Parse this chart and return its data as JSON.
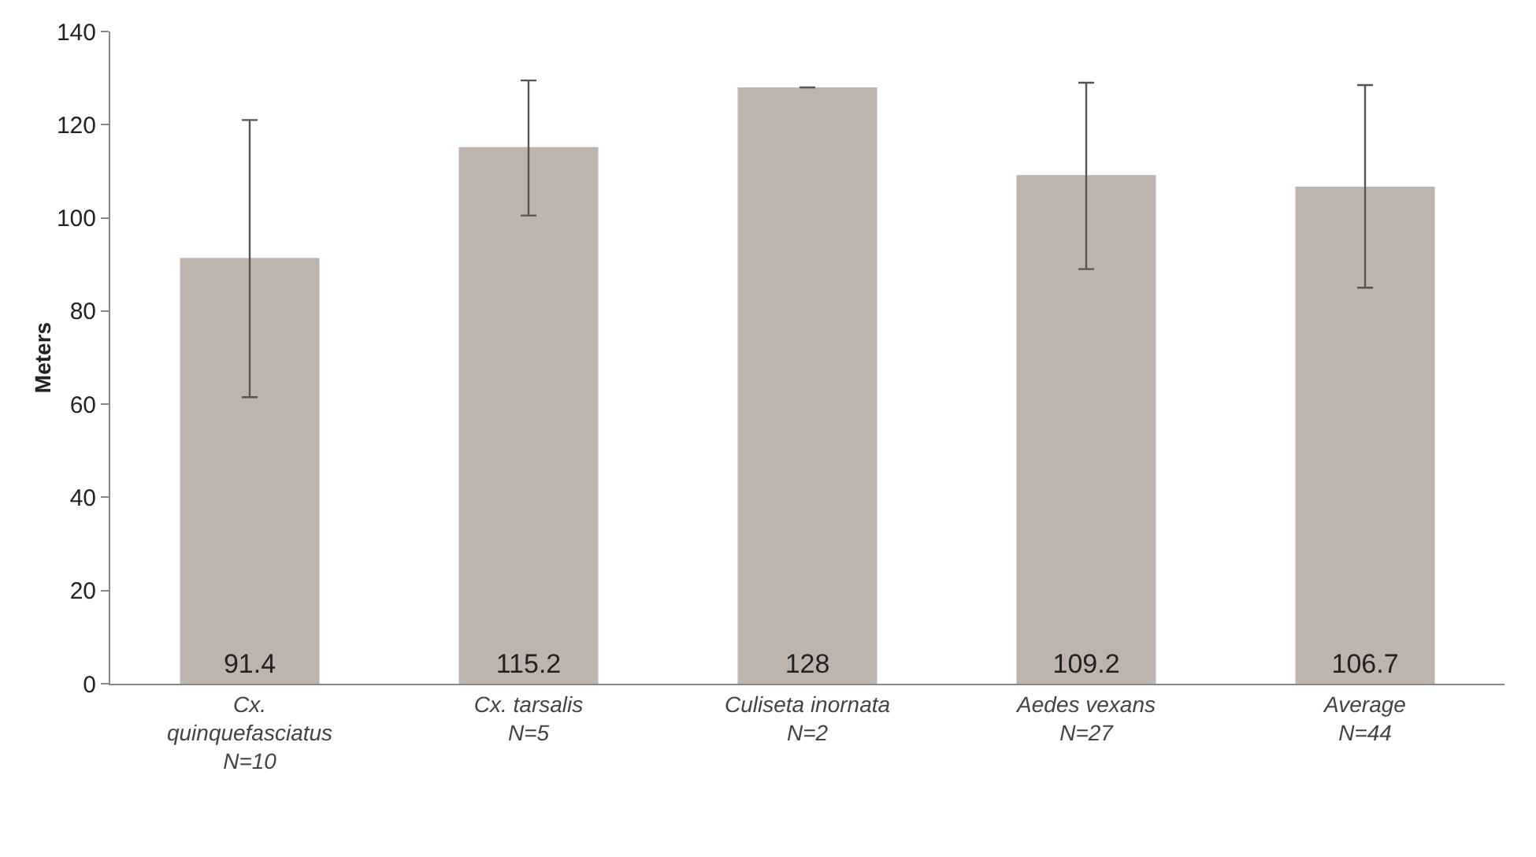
{
  "chart_data": {
    "type": "bar",
    "ylabel": "Meters",
    "categories": [
      "Cx.\nquinquefasciatus\nN=10",
      "Cx. tarsalis\nN=5",
      "Culiseta inornata\nN=2",
      "Aedes vexans\nN=27",
      "Average\nN=44"
    ],
    "values": [
      91.4,
      115.2,
      128,
      109.2,
      106.7
    ],
    "errors": [
      [
        61.5,
        121
      ],
      [
        100.5,
        129.5
      ],
      [
        128,
        128
      ],
      [
        89,
        129
      ],
      [
        85,
        128.5
      ]
    ],
    "color": "#bfb3ad",
    "ylim": [
      0,
      140
    ],
    "yticks": [
      0,
      20,
      40,
      60,
      80,
      100,
      120,
      140
    ],
    "grid": false,
    "data_labels": true
  }
}
